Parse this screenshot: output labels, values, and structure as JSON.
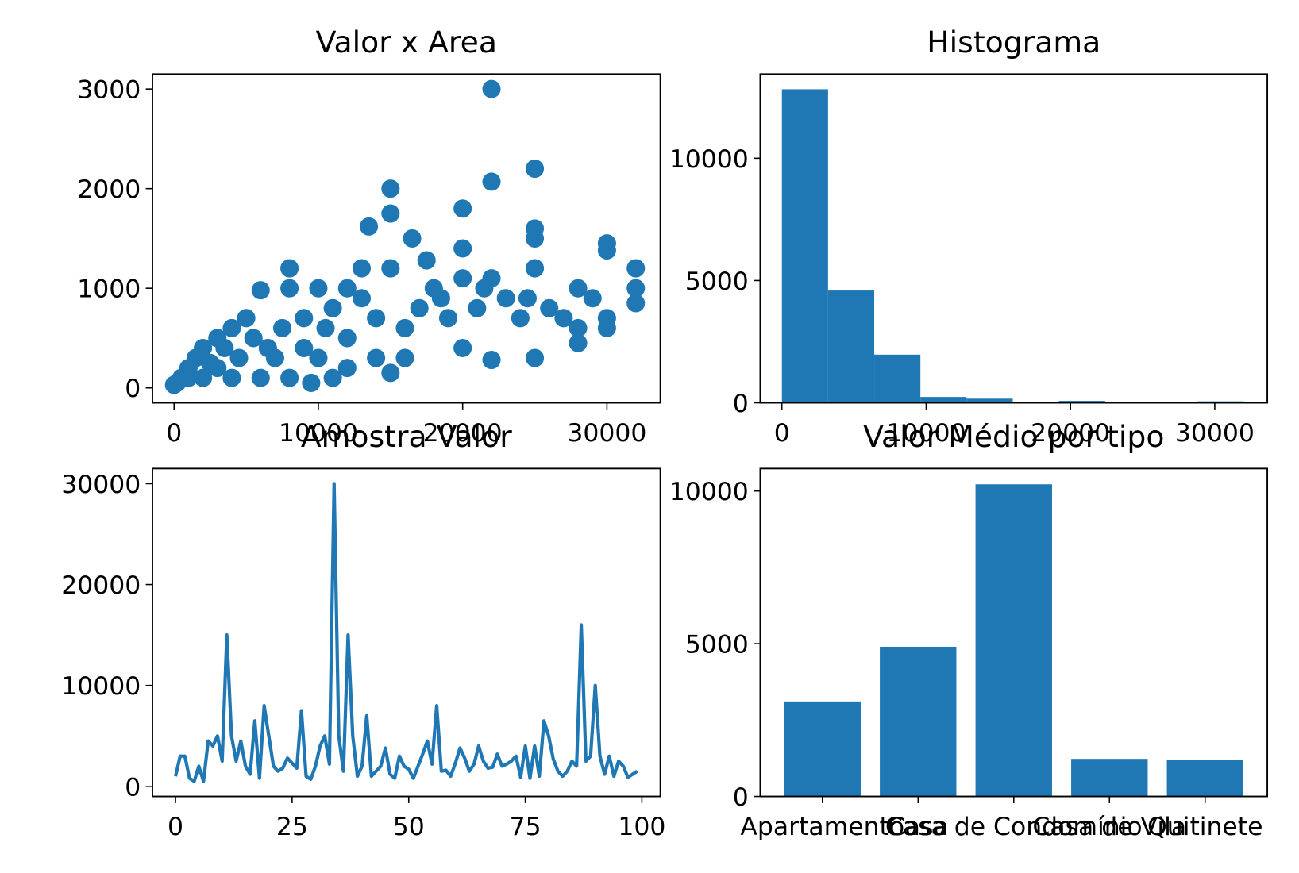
{
  "chart_data": [
    {
      "type": "scatter",
      "title": "Valor x Area",
      "color": "#1f77b4",
      "x": [
        22000,
        22000,
        25000,
        15000,
        20000,
        15000,
        13500,
        16500,
        20000,
        17500,
        25000,
        25000,
        30000,
        30000,
        32000,
        32000,
        32000,
        28000,
        28000,
        28000,
        25000,
        25000,
        22000,
        22000,
        20000,
        20000,
        18000,
        13000,
        8000,
        8000,
        6000,
        10000,
        12000,
        15000,
        15000,
        11000,
        9500,
        5000,
        4000,
        3000,
        2000,
        1000,
        500,
        200,
        0,
        1500,
        2500,
        3500,
        4500,
        5500,
        6500,
        7500,
        9000,
        10500,
        12000,
        14000,
        16000,
        17000,
        19000,
        21000,
        23000,
        24000,
        26000,
        27000,
        29000,
        30000,
        30000,
        24500,
        21500,
        18500,
        16000,
        14000,
        12000,
        10000,
        8000,
        6000,
        4000,
        2000,
        7000,
        9000,
        11000,
        13000,
        3000,
        1000
      ],
      "y": [
        3000,
        2070,
        2200,
        2000,
        1800,
        1750,
        1620,
        1500,
        1400,
        1280,
        1600,
        1500,
        1450,
        1380,
        1200,
        1000,
        850,
        1000,
        600,
        450,
        300,
        1200,
        1100,
        280,
        1100,
        400,
        1000,
        1200,
        1200,
        1000,
        980,
        1000,
        1000,
        1200,
        150,
        100,
        50,
        700,
        600,
        500,
        400,
        200,
        100,
        50,
        30,
        300,
        250,
        400,
        300,
        500,
        400,
        600,
        700,
        600,
        500,
        700,
        600,
        800,
        700,
        800,
        900,
        700,
        800,
        700,
        900,
        700,
        600,
        900,
        1000,
        900,
        300,
        300,
        200,
        300,
        100,
        100,
        100,
        100,
        300,
        400,
        800,
        900,
        200,
        100
      ],
      "xlim": [
        -1500,
        33700
      ],
      "ylim": [
        -150,
        3150
      ],
      "xticks": [
        0,
        10000,
        20000,
        30000
      ],
      "yticks": [
        0,
        1000,
        2000,
        3000
      ]
    },
    {
      "type": "histogram",
      "title": "Histograma",
      "color": "#1f77b4",
      "bins": [
        0,
        3200,
        6400,
        9600,
        12800,
        16000,
        19200,
        22400,
        25600,
        28800,
        32000
      ],
      "values": [
        12820,
        4590,
        1970,
        240,
        170,
        50,
        80,
        30,
        5,
        60
      ],
      "xlim": [
        -1500,
        33640
      ],
      "ylim": [
        0,
        13440
      ],
      "xticks": [
        0,
        10000,
        20000,
        30000
      ],
      "yticks": [
        0,
        5000,
        10000
      ]
    },
    {
      "type": "line",
      "title": "Amostra Valor",
      "color": "#1f77b4",
      "x": [
        0,
        1,
        2,
        3,
        4,
        5,
        6,
        7,
        8,
        9,
        10,
        11,
        12,
        13,
        14,
        15,
        16,
        17,
        18,
        19,
        20,
        21,
        22,
        23,
        24,
        25,
        26,
        27,
        28,
        29,
        30,
        31,
        32,
        33,
        34,
        35,
        36,
        37,
        38,
        39,
        40,
        41,
        42,
        43,
        44,
        45,
        46,
        47,
        48,
        49,
        50,
        51,
        52,
        53,
        54,
        55,
        56,
        57,
        58,
        59,
        60,
        61,
        62,
        63,
        64,
        65,
        66,
        67,
        68,
        69,
        70,
        71,
        72,
        73,
        74,
        75,
        76,
        77,
        78,
        79,
        80,
        81,
        82,
        83,
        84,
        85,
        86,
        87,
        88,
        89,
        90,
        91,
        92,
        93,
        94,
        95,
        96,
        97,
        98,
        99
      ],
      "values": [
        1000,
        3000,
        3000,
        800,
        500,
        2000,
        500,
        4500,
        4000,
        5000,
        2500,
        15000,
        5000,
        2500,
        4500,
        2000,
        1200,
        6500,
        800,
        8000,
        5000,
        2000,
        1500,
        1800,
        2800,
        2300,
        1800,
        7500,
        1000,
        700,
        2000,
        4000,
        5000,
        2200,
        30000,
        5000,
        1500,
        15000,
        5000,
        1000,
        2000,
        7000,
        1000,
        1500,
        2000,
        3800,
        1200,
        800,
        3000,
        2000,
        1700,
        800,
        2000,
        3200,
        4500,
        2200,
        8000,
        1500,
        1600,
        1000,
        2300,
        3800,
        2800,
        1500,
        2200,
        4000,
        2500,
        1800,
        1900,
        3200,
        2000,
        2200,
        2500,
        3000,
        900,
        4000,
        800,
        4000,
        1000,
        6500,
        5000,
        2700,
        1500,
        1000,
        1500,
        2500,
        2000,
        16000,
        2500,
        3000,
        10000,
        3000,
        1200,
        3000,
        1000,
        2500,
        2000,
        900,
        1200,
        1500
      ],
      "xlim": [
        -4.95,
        103.95
      ],
      "ylim": [
        -1000,
        31500
      ],
      "xticks": [
        0,
        25,
        50,
        75,
        100
      ],
      "yticks": [
        0,
        10000,
        20000,
        30000
      ]
    },
    {
      "type": "bar",
      "title": "Valor Médio por tipo",
      "color": "#1f77b4",
      "categories": [
        "Apartamento",
        "Casa",
        "Casa de Condomínio",
        "Casa de Vila",
        "Quitinete"
      ],
      "values": [
        3110,
        4900,
        10220,
        1230,
        1200
      ],
      "ylim": [
        0,
        10736
      ],
      "yticks": [
        0,
        5000,
        10000
      ]
    }
  ]
}
